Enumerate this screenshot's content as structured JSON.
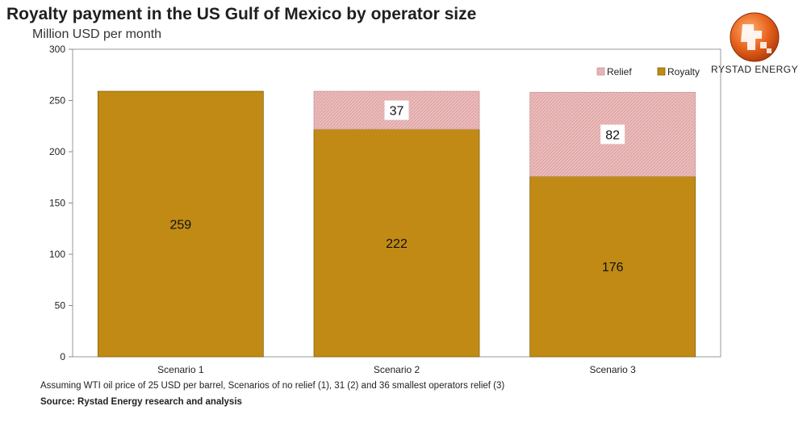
{
  "header": {
    "title": "Royalty payment in the US Gulf of Mexico by operator size",
    "subtitle": "Million USD per month"
  },
  "logo": {
    "text": "RYSTAD ENERGY",
    "icon": "rystad-globe-icon"
  },
  "footer": {
    "note": "Assuming WTI oil price of 25 USD per barrel, Scenarios of no relief (1), 31 (2) and 36 smallest operators relief (3)",
    "source": "Source: Rystad Energy research and analysis"
  },
  "colors": {
    "royalty": "#c08a14",
    "relief": "#e9b6b6",
    "axis": "#888888"
  },
  "chart_data": {
    "type": "bar",
    "stacked": true,
    "categories": [
      "Scenario 1",
      "Scenario 2",
      "Scenario 3"
    ],
    "series": [
      {
        "name": "Royalty",
        "values": [
          259,
          222,
          176
        ],
        "color": "#c08a14"
      },
      {
        "name": "Relief",
        "values": [
          0,
          37,
          82
        ],
        "color": "#e9b6b6"
      }
    ],
    "data_labels": [
      [
        "259",
        "222",
        "176"
      ],
      [
        "",
        "37",
        "82"
      ]
    ],
    "ylim": [
      0,
      300
    ],
    "yticks": [
      0,
      50,
      100,
      150,
      200,
      250,
      300
    ],
    "grid": false,
    "legend": {
      "position": "top-right",
      "entries": [
        "Relief",
        "Royalty"
      ]
    }
  }
}
